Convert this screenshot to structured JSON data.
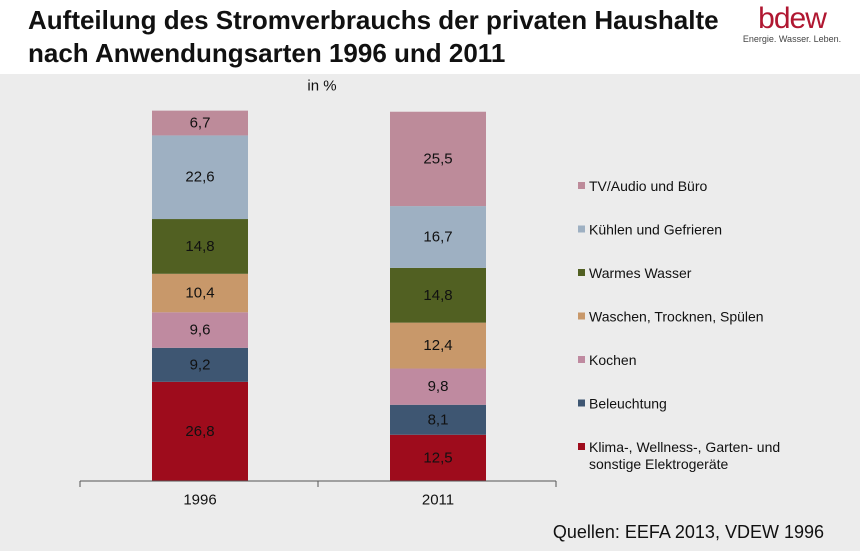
{
  "title": "Aufteilung des Stromverbrauchs der privaten Haushalte nach Anwendungsarten 1996 und 2011",
  "logo": {
    "word": "bdew",
    "tagline": "Energie. Wasser. Leben."
  },
  "source": "Quellen: EEFA 2013, VDEW 1996",
  "colors": {
    "brand": "#b01731",
    "panel": "#ececec"
  },
  "chart_data": {
    "type": "bar",
    "stacked": true,
    "ylabel": "in %",
    "ylim": [
      0,
      100
    ],
    "categories": [
      "1996",
      "2011"
    ],
    "legend_position": "right",
    "series": [
      {
        "name": "Klima-, Wellness-, Garten- und sonstige Elektrogeräte",
        "color": "#9e0c1c",
        "values": [
          26.8,
          12.5
        ]
      },
      {
        "name": "Beleuchtung",
        "color": "#3e5672",
        "values": [
          9.2,
          8.1
        ]
      },
      {
        "name": "Kochen",
        "color": "#bf8aa0",
        "values": [
          9.6,
          9.8
        ]
      },
      {
        "name": "Waschen, Trocknen, Spülen",
        "color": "#c8986a",
        "values": [
          10.4,
          12.4
        ]
      },
      {
        "name": "Warmes Wasser",
        "color": "#516022",
        "values": [
          14.8,
          14.8
        ]
      },
      {
        "name": "Kühlen und Gefrieren",
        "color": "#9eb0c2",
        "values": [
          22.6,
          16.7
        ]
      },
      {
        "name": "TV/Audio und Büro",
        "color": "#bd8b9a",
        "values": [
          6.7,
          25.5
        ]
      }
    ],
    "value_labels": [
      [
        "26,8",
        "12,5"
      ],
      [
        "9,2",
        "8,1"
      ],
      [
        "9,6",
        "9,8"
      ],
      [
        "10,4",
        "12,4"
      ],
      [
        "14,8",
        "14,8"
      ],
      [
        "22,6",
        "16,7"
      ],
      [
        "6,7",
        "25,5"
      ]
    ],
    "legend_lines": [
      [
        "TV/Audio und Büro"
      ],
      [
        "Kühlen und Gefrieren"
      ],
      [
        "Warmes Wasser"
      ],
      [
        "Waschen, Trocknen, Spülen"
      ],
      [
        "Kochen"
      ],
      [
        "Beleuchtung"
      ],
      [
        "Klima-, Wellness-, Garten- und",
        "sonstige Elektrogeräte"
      ]
    ]
  }
}
